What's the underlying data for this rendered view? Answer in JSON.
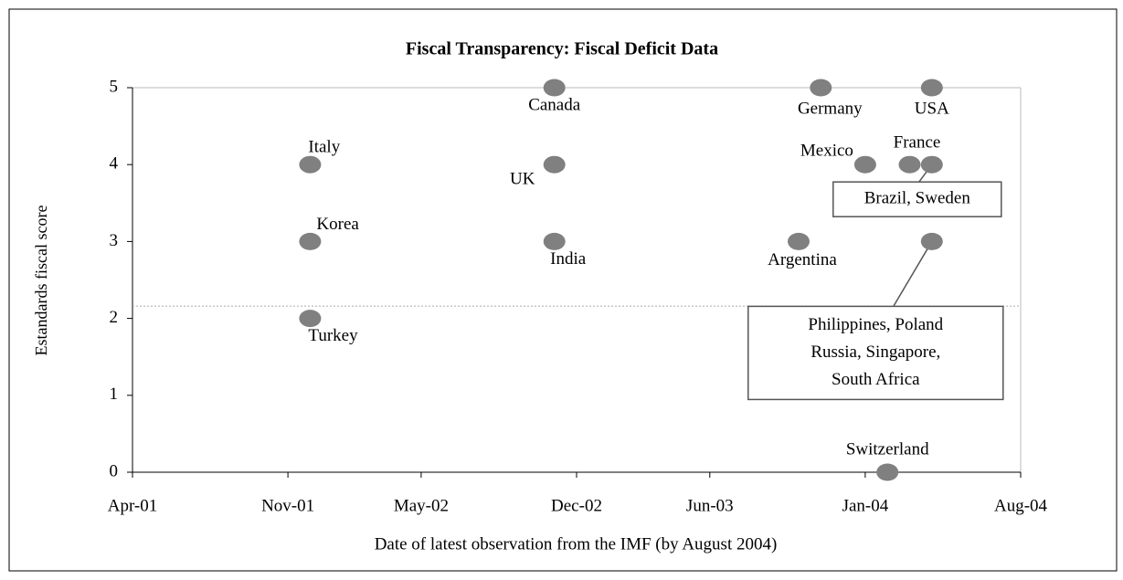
{
  "chart_data": {
    "type": "scatter",
    "title": "Fiscal Transparency:  Fiscal Deficit Data",
    "x_label": "Date of latest observation from the IMF (by August 2004)",
    "y_label": "Estandards fiscal score",
    "color": "#808080",
    "points": [
      {
        "label": "Italy",
        "x": "2001-12",
        "y": 4
      },
      {
        "label": "Korea",
        "x": "2001-12",
        "y": 3
      },
      {
        "label": "Turkey",
        "x": "2001-12",
        "y": 2
      },
      {
        "label": "Canada",
        "x": "2002-11",
        "y": 5
      },
      {
        "label": "UK",
        "x": "2002-11",
        "y": 4
      },
      {
        "label": "India",
        "x": "2002-11",
        "y": 3
      },
      {
        "label": "Argentina",
        "x": "2003-10",
        "y": 3
      },
      {
        "label": "Germany",
        "x": "2003-11",
        "y": 5
      },
      {
        "label": "Mexico",
        "x": "2004-01",
        "y": 4
      },
      {
        "label": "France",
        "x": "2004-03",
        "y": 4
      },
      {
        "label": "USA",
        "x": "2004-04",
        "y": 5
      },
      {
        "label": "Brazil,  Sweden",
        "x": "2004-04",
        "y": 4
      },
      {
        "label": [
          "Philippines,  Poland",
          "Russia, Singapore,",
          "South Africa"
        ],
        "x": "2004-04",
        "y": 3
      },
      {
        "label": "Switzerland",
        "x": "2004-02",
        "y": 0
      }
    ],
    "reference_line": 2.16,
    "xlim": [
      "2001-04",
      "2004-08"
    ],
    "xticks": [
      {
        "value": "2001-04",
        "label": "Apr-01"
      },
      {
        "value": "2001-11",
        "label": "Nov-01"
      },
      {
        "value": "2002-05",
        "label": "May-02"
      },
      {
        "value": "2002-12",
        "label": "Dec-02"
      },
      {
        "value": "2003-06",
        "label": "Jun-03"
      },
      {
        "value": "2004-01",
        "label": "Jan-04"
      },
      {
        "value": "2004-08",
        "label": "Aug-04"
      }
    ],
    "ylim": [
      0,
      5
    ],
    "yticks": [
      0,
      1,
      2,
      3,
      4,
      5
    ],
    "grid": false
  }
}
